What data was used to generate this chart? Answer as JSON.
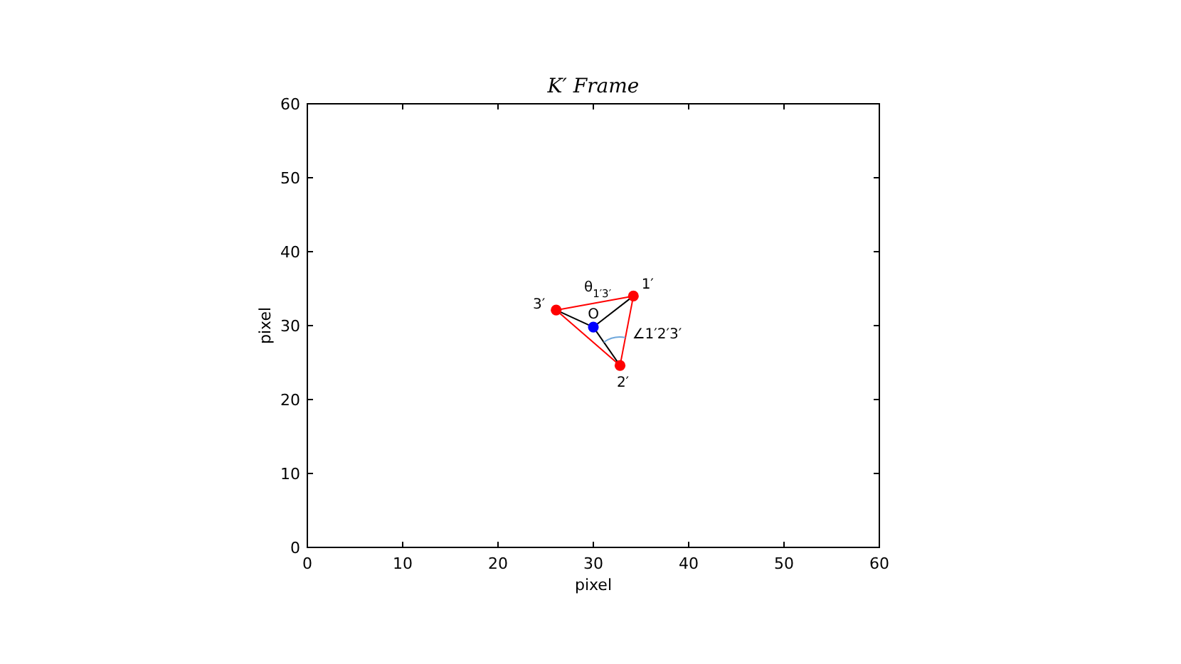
{
  "chart_data": {
    "type": "scatter",
    "title": "K′ Frame",
    "xlabel": "pixel",
    "ylabel": "pixel",
    "xlim": [
      0,
      60
    ],
    "ylim": [
      0,
      60
    ],
    "xticks": [
      0,
      10,
      20,
      30,
      40,
      50,
      60
    ],
    "yticks": [
      0,
      10,
      20,
      30,
      40,
      50,
      60
    ],
    "grid": false,
    "series": [
      {
        "type": "line",
        "color": "#ff0000",
        "x": [
          34.2,
          32.8
        ],
        "values": [
          34.0,
          24.6
        ],
        "marker": "none"
      },
      {
        "type": "line",
        "color": "#ff0000",
        "x": [
          32.8,
          26.1
        ],
        "values": [
          24.6,
          32.1
        ],
        "marker": "none"
      },
      {
        "type": "line",
        "color": "#ff0000",
        "x": [
          26.1,
          34.2
        ],
        "values": [
          32.1,
          34.0
        ],
        "marker": "none"
      },
      {
        "type": "line",
        "color": "#000000",
        "x": [
          30.0,
          34.2
        ],
        "values": [
          29.8,
          34.0
        ],
        "marker": "none"
      },
      {
        "type": "line",
        "color": "#000000",
        "x": [
          30.0,
          32.8
        ],
        "values": [
          29.8,
          24.6
        ],
        "marker": "none"
      },
      {
        "type": "line",
        "color": "#000000",
        "x": [
          30.0,
          26.1
        ],
        "values": [
          29.8,
          32.1
        ],
        "marker": "none"
      },
      {
        "type": "scatter",
        "color": "#ff0000",
        "x": [
          34.2,
          32.8,
          26.1
        ],
        "values": [
          34.0,
          24.6,
          32.1
        ],
        "marker": "circle"
      },
      {
        "type": "scatter",
        "color": "#0000ff",
        "x": [
          30.0
        ],
        "values": [
          29.8
        ],
        "marker": "circle"
      }
    ],
    "annotations": [
      {
        "text": "1′",
        "x": 34.2,
        "y": 34.0
      },
      {
        "text": "2′",
        "x": 32.8,
        "y": 24.6
      },
      {
        "text": "3′",
        "x": 26.1,
        "y": 32.1
      },
      {
        "text": "O",
        "x": 30.0,
        "y": 29.8
      },
      "θ$_{1′3′}$",
      {
        "text": "∠1′2′3′",
        "x": 32.8,
        "y": 24.6
      }
    ]
  }
}
